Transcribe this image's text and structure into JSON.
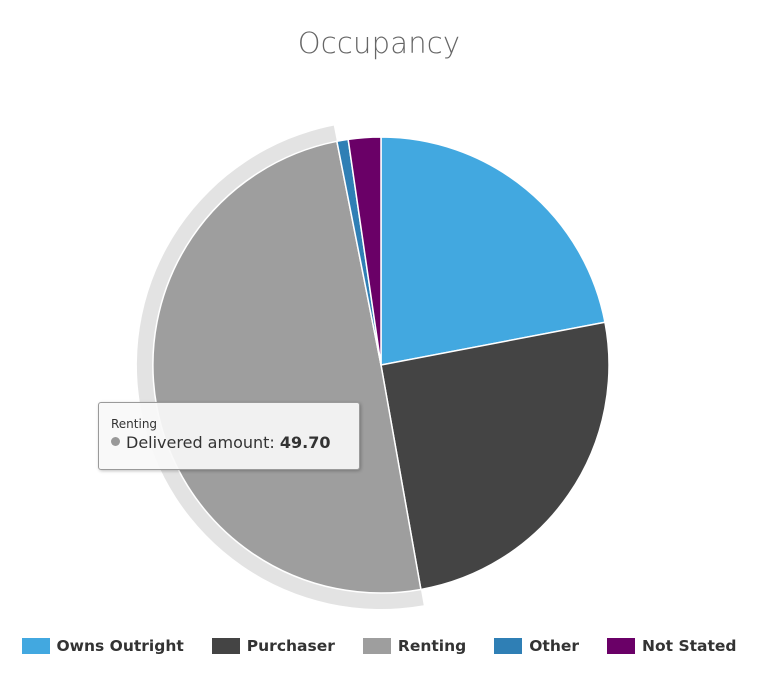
{
  "chart_data": {
    "type": "pie",
    "title": "Occupancy",
    "series_label": "Delivered amount",
    "categories": [
      "Owns Outright",
      "Purchaser",
      "Renting",
      "Other",
      "Not Stated"
    ],
    "values": [
      22.0,
      25.2,
      49.7,
      0.8,
      2.3
    ],
    "colors": [
      "#42a8e0",
      "#444444",
      "#9e9e9e",
      "#2f7fb5",
      "#6a0067"
    ],
    "hovered_index": 2,
    "legend_position": "bottom-center"
  },
  "tooltip": {
    "category": "Renting",
    "series_label": "Delivered amount",
    "separator": ": ",
    "value": "49.70"
  },
  "legend": {
    "items": [
      {
        "label": "Owns Outright",
        "color": "#42a8e0"
      },
      {
        "label": "Purchaser",
        "color": "#444444"
      },
      {
        "label": "Renting",
        "color": "#9e9e9e"
      },
      {
        "label": "Other",
        "color": "#2f7fb5"
      },
      {
        "label": "Not Stated",
        "color": "#6a0067"
      }
    ]
  }
}
